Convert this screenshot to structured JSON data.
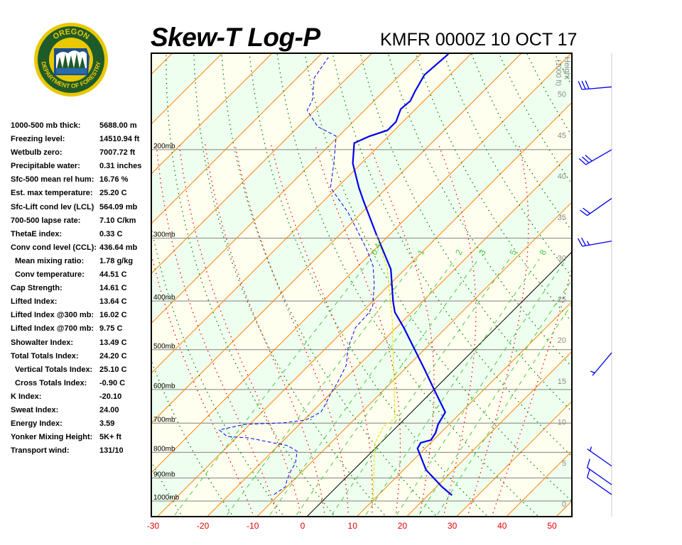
{
  "header": {
    "title": "Skew-T Log-P",
    "station_time": "KMFR 0000Z 10 OCT 17"
  },
  "logo": {
    "text_top": "OREGON",
    "text_bottom": "DEPARTMENT OF FORESTRY",
    "ring_color": "#e8c800",
    "field_color": "#1f5a2a"
  },
  "stats": [
    {
      "label": "1000-500 mb thick:",
      "value": "5688.00 m"
    },
    {
      "label": "Freezing level:",
      "value": "14510.94 ft"
    },
    {
      "label": "Wetbulb zero:",
      "value": "7007.72 ft"
    },
    {
      "label": "Precipitable water:",
      "value": "0.31 inches"
    },
    {
      "label": "Sfc-500 mean rel hum:",
      "value": "16.76 %"
    },
    {
      "label": "Est. max temperature:",
      "value": "25.20 C"
    },
    {
      "label": "Sfc-Lift cond lev (LCL)",
      "value": "564.09 mb"
    },
    {
      "label": "700-500 lapse rate:",
      "value": "7.10 C/km"
    },
    {
      "label": "ThetaE index:",
      "value": "0.33 C"
    },
    {
      "label": "Conv cond level (CCL):",
      "value": "436.64 mb"
    },
    {
      "label": "Mean mixing ratio:",
      "value": "1.78 g/kg",
      "indent": true
    },
    {
      "label": "Conv temperature:",
      "value": "44.51 C",
      "indent": true
    },
    {
      "label": "Cap Strength:",
      "value": "14.61 C"
    },
    {
      "label": "Lifted Index:",
      "value": "13.64 C"
    },
    {
      "label": "Lifted Index @300 mb:",
      "value": "16.02 C"
    },
    {
      "label": "Lifted Index @700 mb:",
      "value": "9.75 C"
    },
    {
      "label": "Showalter Index:",
      "value": "13.49 C"
    },
    {
      "label": "Total Totals Index:",
      "value": "24.20 C"
    },
    {
      "label": "Vertical Totals Index:",
      "value": "25.10 C",
      "indent": true
    },
    {
      "label": "Cross Totals Index:",
      "value": "-0.90 C",
      "indent": true
    },
    {
      "label": "K Index:",
      "value": "-20.10"
    },
    {
      "label": "Sweat Index:",
      "value": "24.00"
    },
    {
      "label": "Energy Index:",
      "value": "3.59"
    },
    {
      "label": "Yonker Mixing Height:",
      "value": "5K+ ft"
    },
    {
      "label": "Transport wind:",
      "value": "131/10"
    }
  ],
  "chart_data": {
    "type": "line",
    "title": "Skew-T Log-P",
    "x_axis": {
      "unit": "C",
      "ticks": [
        -30,
        -20,
        -10,
        0,
        10,
        20,
        30,
        40,
        50
      ],
      "tick_labels": [
        "-30",
        "-20",
        "-10",
        "0",
        "10",
        "20",
        "30",
        "40",
        "50"
      ]
    },
    "y_axis": {
      "scale": "log-pressure",
      "range_mb": [
        1074,
        129
      ],
      "ticks_mb": [
        200,
        300,
        400,
        500,
        600,
        700,
        800,
        900,
        1000
      ],
      "tick_labels": [
        "200mb",
        "300mb",
        "400mb",
        "500mb",
        "600mb",
        "700mb",
        "800mb",
        "900mb",
        "1000mb"
      ]
    },
    "height_axis": {
      "label": "Height",
      "unit_label": "(1000 ft)",
      "ticks": [
        0,
        5,
        10,
        15,
        20,
        25,
        30,
        35,
        40,
        45,
        50
      ],
      "tick_labels": [
        "0",
        "5",
        "10",
        "15",
        "20",
        "25",
        "30",
        "35",
        "40",
        "45",
        "50"
      ]
    },
    "mixing_ratio_labels": [
      "0.4",
      "1",
      "2",
      "3",
      "5",
      "8"
    ],
    "mixing_ratio_values": [
      0.4,
      1,
      2,
      3,
      5,
      8,
      12,
      16,
      20
    ],
    "colors": {
      "temperature": "#0000ee",
      "dewpoint": "#0000ee",
      "parcel": "#e8e800",
      "isotherm": "#ff8000",
      "zero_isotherm": "#000000",
      "dry_adiabat": "#008000",
      "moist_adiabat": "#ff0000",
      "mixing_ratio": "#44cc44",
      "band_a": "#fffff0",
      "band_b": "#efffef",
      "axis_labels": "#dd0000"
    },
    "series": [
      {
        "name": "temperature",
        "style": "solid-thick",
        "p": [
          974,
          937,
          867,
          786,
          766,
          756,
          732,
          704,
          666,
          600,
          546,
          496,
          452,
          421,
          401,
          346,
          295,
          253,
          238,
          213,
          194,
          188,
          183,
          176,
          166,
          160,
          153,
          142,
          129
        ],
        "t": [
          24.8,
          21.1,
          14.5,
          8.5,
          8.0,
          9.5,
          9.0,
          7.8,
          6.8,
          0.0,
          -6.1,
          -12.4,
          -18.5,
          -23.4,
          -25.9,
          -32.8,
          -42.7,
          -52.0,
          -55.6,
          -61.7,
          -65.5,
          -63.8,
          -61.4,
          -61.4,
          -63.0,
          -62.7,
          -63.7,
          -65.1,
          -64.5
        ]
      },
      {
        "name": "dewpoint",
        "style": "dashed",
        "p": [
          971,
          937,
          907,
          867,
          839,
          796,
          776,
          749,
          744,
          722,
          704,
          699,
          690,
          679,
          664,
          643,
          612,
          583,
          537,
          496,
          452,
          421,
          408,
          370,
          341,
          314,
          285,
          267,
          238,
          213,
          188,
          180,
          167,
          159,
          144,
          131
        ],
        "t": [
          -11.0,
          -10.3,
          -11.4,
          -12.5,
          -13.1,
          -15.1,
          -18.1,
          -27.5,
          -32.1,
          -35.0,
          -30.9,
          -23.4,
          -19.7,
          -18.9,
          -18.2,
          -18.8,
          -19.9,
          -20.7,
          -22.5,
          -25.6,
          -28.2,
          -28.5,
          -29.2,
          -33.2,
          -37.0,
          -42.0,
          -48.4,
          -52.7,
          -61.3,
          -65.5,
          -70.5,
          -76.1,
          -81.5,
          -82.6,
          -86.6,
          -87.9
        ]
      },
      {
        "name": "parcel",
        "style": "dashed-yellow",
        "p": [
          997,
          768,
          708,
          686,
          583,
          435,
          346,
          295
        ],
        "t": [
          10.0,
          -1.1,
          -2.8,
          -2.0,
          -9.3,
          -22.5,
          -33.5,
          -42.7
        ]
      }
    ],
    "winds": [
      {
        "p": 150,
        "dir": 265,
        "kt": 30
      },
      {
        "p": 200,
        "dir": 240,
        "kt": 30
      },
      {
        "p": 250,
        "dir": 235,
        "kt": 20
      },
      {
        "p": 304,
        "dir": 260,
        "kt": 25
      },
      {
        "p": 507,
        "dir": 220,
        "kt": 5
      },
      {
        "p": 852,
        "dir": 305,
        "kt": 5
      },
      {
        "p": 928,
        "dir": 305,
        "kt": 10
      },
      {
        "p": 971,
        "dir": 305,
        "kt": 10
      }
    ],
    "grid": true
  }
}
